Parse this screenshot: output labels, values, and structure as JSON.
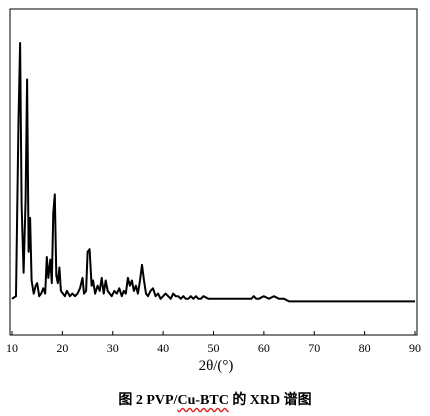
{
  "chart_data": {
    "type": "line",
    "xlabel": "2θ/(°)",
    "ylabel": "",
    "xlim": [
      10,
      90
    ],
    "xticks": [
      10,
      20,
      30,
      40,
      50,
      60,
      70,
      80,
      90
    ],
    "y_ticks_shown": false,
    "grid": false,
    "series": [
      {
        "x": [
          10.0,
          10.8,
          11.3,
          11.6,
          11.9,
          12.3,
          12.7,
          13.0,
          13.3,
          13.6,
          13.9,
          14.3,
          14.7,
          15.0,
          15.4,
          15.8,
          16.2,
          16.6,
          16.9,
          17.2,
          17.6,
          17.9,
          18.2,
          18.5,
          18.8,
          19.1,
          19.4,
          19.7,
          20.1,
          20.5,
          20.9,
          21.5,
          22.0,
          22.5,
          23.0,
          23.5,
          24.0,
          24.3,
          24.7,
          25.0,
          25.4,
          25.8,
          26.1,
          26.5,
          27.0,
          27.4,
          27.8,
          28.2,
          28.6,
          29.0,
          29.4,
          29.8,
          30.3,
          30.8,
          31.3,
          31.8,
          32.2,
          32.6,
          33.0,
          33.4,
          33.8,
          34.2,
          34.6,
          35.0,
          35.4,
          35.8,
          36.2,
          36.6,
          37.0,
          37.5,
          38.0,
          38.5,
          39.0,
          39.5,
          40.0,
          40.5,
          41.0,
          41.5,
          42.0,
          42.5,
          43.0,
          43.5,
          44.0,
          44.5,
          45.0,
          45.5,
          46.0,
          46.5,
          47.0,
          47.5,
          48.0,
          49.0,
          50.0,
          51.0,
          52.0,
          53.0,
          54.0,
          55.0,
          56.0,
          57.0,
          57.5,
          58.0,
          58.5,
          59.0,
          60.0,
          61.0,
          62.0,
          63.0,
          64.0,
          65.0,
          67.0,
          70.0,
          73.0,
          76.0,
          80.0,
          84.0,
          88.0,
          90.0
        ],
        "y": [
          2,
          3,
          70,
          100,
          38,
          12,
          40,
          86,
          20,
          33,
          9,
          4,
          7,
          8,
          3,
          4,
          6,
          4,
          18,
          10,
          17,
          8,
          35,
          42,
          11,
          8,
          14,
          5,
          4,
          3,
          5,
          3,
          4,
          3,
          4,
          6,
          10,
          4,
          5,
          20,
          21,
          7,
          9,
          4,
          7,
          5,
          10,
          4,
          9,
          5,
          4,
          3,
          5,
          4,
          6,
          3,
          5,
          4,
          10,
          7,
          9,
          5,
          7,
          4,
          9,
          15,
          9,
          4,
          3,
          5,
          6,
          3,
          4,
          2,
          3,
          4,
          3,
          2,
          4,
          3,
          3,
          2,
          3,
          2,
          2,
          3,
          2,
          3,
          2,
          2,
          3,
          2,
          2,
          2,
          2,
          2,
          2,
          2,
          2,
          2,
          2,
          3,
          2,
          2,
          3,
          2,
          3,
          2,
          2,
          1,
          1,
          1,
          1,
          1,
          1,
          1,
          1,
          1
        ]
      }
    ]
  },
  "caption": {
    "prefix": "图 2   PVP/",
    "squiggle": "Cu-BTC",
    "suffix": " 的 XRD 谱图"
  }
}
